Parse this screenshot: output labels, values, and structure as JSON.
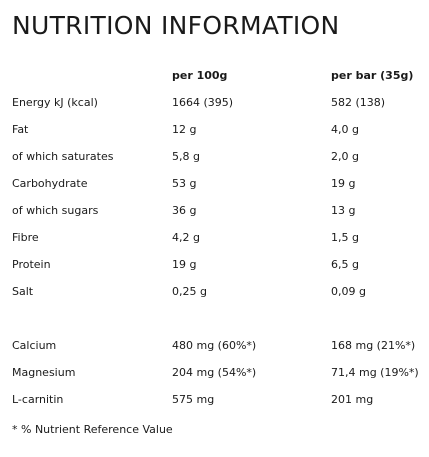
{
  "title": "NUTRITION INFORMATION",
  "columns": [
    "",
    "per 100g",
    "per bar (35g)"
  ],
  "rows": [
    {
      "label": "Energy kJ (kcal)",
      "per100": "1664 (395)",
      "perbar": "582 (138)"
    },
    {
      "label": "Fat",
      "per100": "12 g",
      "perbar": "4,0 g"
    },
    {
      "label": "of which saturates",
      "per100": "5,8 g",
      "perbar": "2,0 g"
    },
    {
      "label": "Carbohydrate",
      "per100": "53 g",
      "perbar": "19 g"
    },
    {
      "label": "of which sugars",
      "per100": "36 g",
      "perbar": "13 g"
    },
    {
      "label": "Fibre",
      "per100": "4,2 g",
      "perbar": "1,5 g"
    },
    {
      "label": "Protein",
      "per100": "19 g",
      "perbar": "6,5 g"
    },
    {
      "label": "Salt",
      "per100": "0,25 g",
      "perbar": "0,09 g"
    }
  ],
  "minerals": [
    {
      "label": "Calcium",
      "per100": "480 mg (60%*)",
      "perbar": "168 mg (21%*)"
    },
    {
      "label": "Magnesium",
      "per100": "204 mg (54%*)",
      "perbar": "71,4 mg (19%*)"
    },
    {
      "label": "L-carnitin",
      "per100": "575 mg",
      "perbar": "201 mg"
    }
  ],
  "footnote": "* % Nutrient Reference Value"
}
